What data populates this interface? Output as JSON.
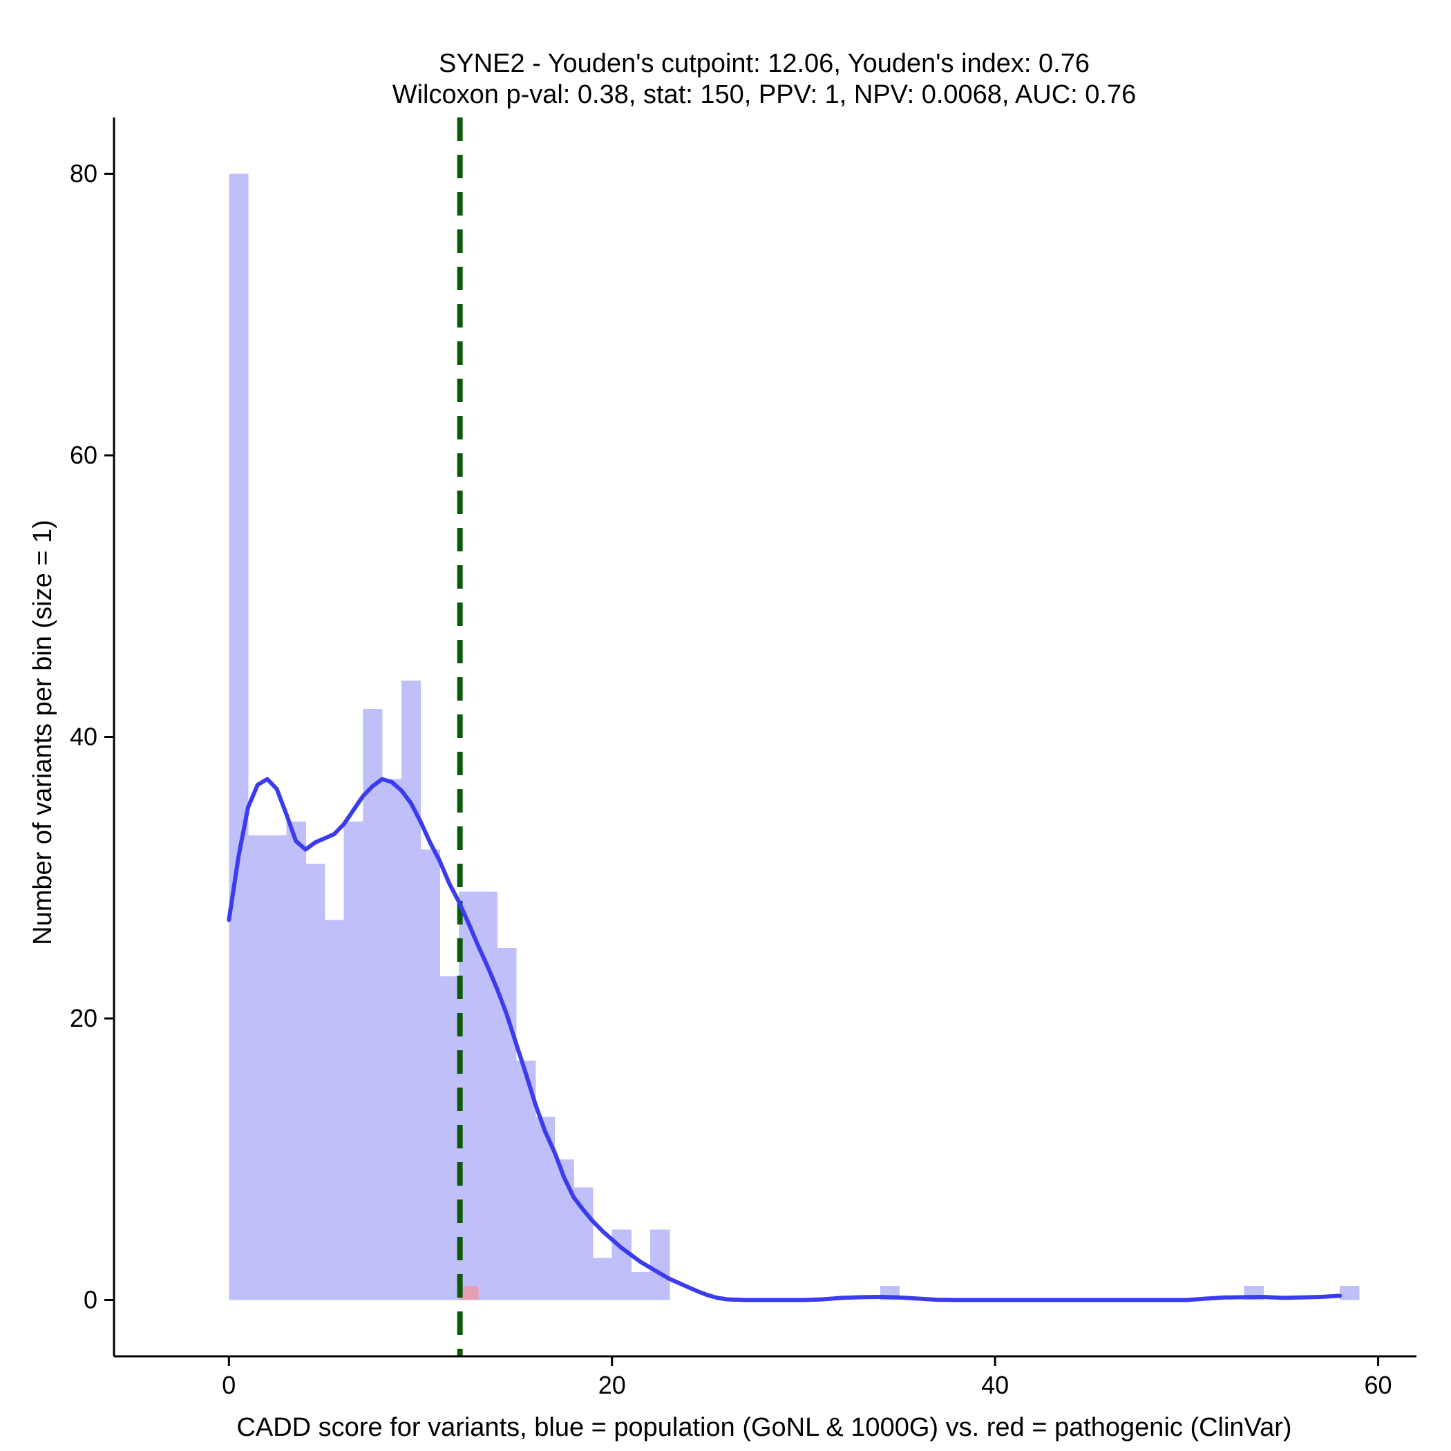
{
  "chart_data": {
    "type": "histogram",
    "title_line1": "SYNE2 - Youden's cutpoint: 12.06, Youden's index: 0.76",
    "title_line2": "Wilcoxon p-val: 0.38, stat: 150, PPV: 1, NPV: 0.0068, AUC: 0.76",
    "xlabel": "CADD score for variants, blue = population (GoNL & 1000G) vs. red = pathogenic (ClinVar)",
    "ylabel": "Number of variants per bin (size = 1)",
    "xlim": [
      -6,
      62
    ],
    "ylim": [
      -4,
      84
    ],
    "x_ticks": [
      0,
      20,
      40,
      60
    ],
    "y_ticks": [
      0,
      20,
      40,
      60,
      80
    ],
    "bin_size": 1,
    "cutpoint": 12.06,
    "colors": {
      "population": "#bfbff9",
      "pathogenic": "#e6a0b4",
      "density": "#3b3bf0",
      "cutpoint": "#0a5a0a"
    },
    "series": [
      {
        "key": "population",
        "bins": [
          [
            0,
            80
          ],
          [
            1,
            33
          ],
          [
            2,
            33
          ],
          [
            3,
            34
          ],
          [
            4,
            31
          ],
          [
            5,
            27
          ],
          [
            6,
            34
          ],
          [
            7,
            42
          ],
          [
            8,
            37
          ],
          [
            9,
            44
          ],
          [
            10,
            32
          ],
          [
            11,
            23
          ],
          [
            12,
            29
          ],
          [
            13,
            29
          ],
          [
            14,
            25
          ],
          [
            15,
            17
          ],
          [
            16,
            13
          ],
          [
            17,
            10
          ],
          [
            18,
            8
          ],
          [
            19,
            3
          ],
          [
            20,
            5
          ],
          [
            21,
            2
          ],
          [
            22,
            5
          ],
          [
            34,
            1
          ],
          [
            53,
            1
          ],
          [
            58,
            1
          ]
        ]
      },
      {
        "key": "pathogenic",
        "bins": [
          [
            12,
            1
          ]
        ]
      }
    ],
    "density_curve": [
      [
        0,
        27
      ],
      [
        0.5,
        31.5
      ],
      [
        1,
        35
      ],
      [
        1.5,
        36.6
      ],
      [
        2,
        37
      ],
      [
        2.5,
        36.3
      ],
      [
        3,
        34.5
      ],
      [
        3.5,
        32.6
      ],
      [
        4,
        32
      ],
      [
        4.5,
        32.5
      ],
      [
        5,
        32.8
      ],
      [
        5.5,
        33.1
      ],
      [
        6,
        33.8
      ],
      [
        6.5,
        34.8
      ],
      [
        7,
        35.8
      ],
      [
        7.5,
        36.5
      ],
      [
        8,
        37
      ],
      [
        8.5,
        36.8
      ],
      [
        9,
        36.2
      ],
      [
        9.5,
        35.3
      ],
      [
        10,
        34
      ],
      [
        10.5,
        32.5
      ],
      [
        11,
        31.2
      ],
      [
        11.5,
        29.6
      ],
      [
        12,
        28.3
      ],
      [
        12.5,
        26.8
      ],
      [
        13,
        25.2
      ],
      [
        13.5,
        23.7
      ],
      [
        14,
        22.1
      ],
      [
        14.5,
        20.3
      ],
      [
        15,
        18.2
      ],
      [
        15.5,
        16.1
      ],
      [
        16,
        13.9
      ],
      [
        16.5,
        12
      ],
      [
        17,
        10.5
      ],
      [
        17.5,
        8.7
      ],
      [
        18,
        7.3
      ],
      [
        18.5,
        6.4
      ],
      [
        19,
        5.6
      ],
      [
        19.5,
        4.9
      ],
      [
        20,
        4.3
      ],
      [
        20.5,
        3.7
      ],
      [
        21,
        3.2
      ],
      [
        21.5,
        2.7
      ],
      [
        22,
        2.3
      ],
      [
        22.5,
        1.9
      ],
      [
        23,
        1.5
      ],
      [
        23.5,
        1.2
      ],
      [
        24,
        0.9
      ],
      [
        24.5,
        0.6
      ],
      [
        25,
        0.35
      ],
      [
        25.5,
        0.15
      ],
      [
        26,
        0.05
      ],
      [
        27,
        0
      ],
      [
        30,
        0
      ],
      [
        31,
        0.05
      ],
      [
        32,
        0.15
      ],
      [
        33,
        0.2
      ],
      [
        34,
        0.22
      ],
      [
        35,
        0.18
      ],
      [
        36,
        0.1
      ],
      [
        37,
        0.02
      ],
      [
        38,
        0
      ],
      [
        48,
        0
      ],
      [
        50,
        0
      ],
      [
        51,
        0.1
      ],
      [
        52,
        0.18
      ],
      [
        53,
        0.2
      ],
      [
        54,
        0.22
      ],
      [
        55,
        0.15
      ],
      [
        56,
        0.18
      ],
      [
        57,
        0.22
      ],
      [
        58,
        0.3
      ]
    ]
  }
}
